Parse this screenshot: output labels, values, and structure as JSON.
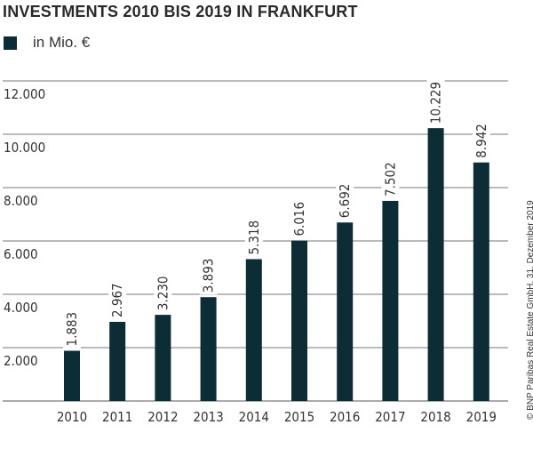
{
  "chart_data": {
    "type": "bar",
    "title": "INVESTMENTS 2010 BIS 2019 IN FRANKFURT",
    "legend": [
      {
        "name": "in Mio. €",
        "color": "#0d2d36"
      }
    ],
    "legend_placement": "top-left",
    "categories": [
      "2010",
      "2011",
      "2012",
      "2013",
      "2014",
      "2015",
      "2016",
      "2017",
      "2018",
      "2019"
    ],
    "series": [
      {
        "name": "in Mio. €",
        "values": [
          1883,
          2967,
          3230,
          3893,
          5318,
          6016,
          6692,
          7502,
          10229,
          8942
        ]
      }
    ],
    "data_labels": [
      "1.883",
      "2.967",
      "3.230",
      "3.893",
      "5.318",
      "6.016",
      "6.692",
      "7.502",
      "10.229",
      "8.942"
    ],
    "yticks": [
      2000,
      4000,
      6000,
      8000,
      10000,
      12000
    ],
    "ytick_labels": [
      "2.000",
      "4.000",
      "6.000",
      "8.000",
      "10.000",
      "12.000"
    ],
    "ylim": [
      0,
      12000
    ],
    "grid": true,
    "bar_color": "#0d2d36",
    "source": "© BNP Paribas Real Estate GmbH, 31. Dezember 2019"
  }
}
